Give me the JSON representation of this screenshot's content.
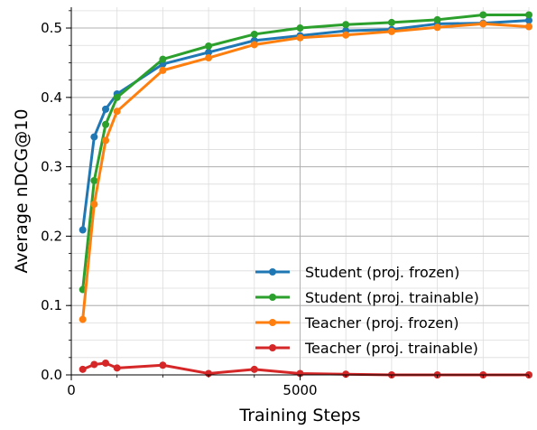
{
  "chart_data": {
    "type": "line",
    "title": "",
    "xlabel": "Training Steps",
    "ylabel": "Average nDCG@10",
    "xlim": [
      0,
      10000
    ],
    "ylim": [
      0,
      0.53
    ],
    "x_ticks": [
      {
        "value": 0,
        "label": "0"
      },
      {
        "value": 5000,
        "label": "5000"
      }
    ],
    "y_ticks": [
      {
        "value": 0.0,
        "label": "0.0"
      },
      {
        "value": 0.1,
        "label": "0.1"
      },
      {
        "value": 0.2,
        "label": "0.2"
      },
      {
        "value": 0.3,
        "label": "0.3"
      },
      {
        "value": 0.4,
        "label": "0.4"
      },
      {
        "value": 0.5,
        "label": "0.5"
      }
    ],
    "x_minor_step": 1000,
    "y_minor_step": 0.025,
    "grid": true,
    "legend_position": "lower-right",
    "series": [
      {
        "name": "Student (proj. frozen)",
        "color": "#1f77b4",
        "x": [
          250,
          500,
          750,
          1000,
          2000,
          3000,
          4000,
          5000,
          6000,
          7000,
          8000,
          9000,
          10000
        ],
        "y": [
          0.209,
          0.343,
          0.383,
          0.405,
          0.448,
          0.465,
          0.482,
          0.489,
          0.496,
          0.498,
          0.506,
          0.507,
          0.511
        ]
      },
      {
        "name": "Student (proj. trainable)",
        "color": "#2ca02c",
        "x": [
          250,
          500,
          750,
          1000,
          2000,
          3000,
          4000,
          5000,
          6000,
          7000,
          8000,
          9000,
          10000
        ],
        "y": [
          0.123,
          0.28,
          0.361,
          0.4,
          0.455,
          0.474,
          0.491,
          0.5,
          0.505,
          0.508,
          0.512,
          0.519,
          0.519
        ]
      },
      {
        "name": "Teacher (proj. frozen)",
        "color": "#ff7f0e",
        "x": [
          250,
          500,
          750,
          1000,
          2000,
          3000,
          4000,
          5000,
          6000,
          7000,
          8000,
          9000,
          10000
        ],
        "y": [
          0.08,
          0.246,
          0.338,
          0.38,
          0.439,
          0.457,
          0.476,
          0.486,
          0.49,
          0.495,
          0.501,
          0.506,
          0.502
        ]
      },
      {
        "name": "Teacher (proj. trainable)",
        "color": "#d62728",
        "x": [
          250,
          500,
          750,
          1000,
          2000,
          3000,
          4000,
          5000,
          6000,
          7000,
          8000,
          9000,
          10000
        ],
        "y": [
          0.008,
          0.015,
          0.017,
          0.01,
          0.014,
          0.002,
          0.008,
          0.002,
          0.001,
          0.0,
          0.0,
          0.0,
          0.0
        ]
      }
    ]
  }
}
